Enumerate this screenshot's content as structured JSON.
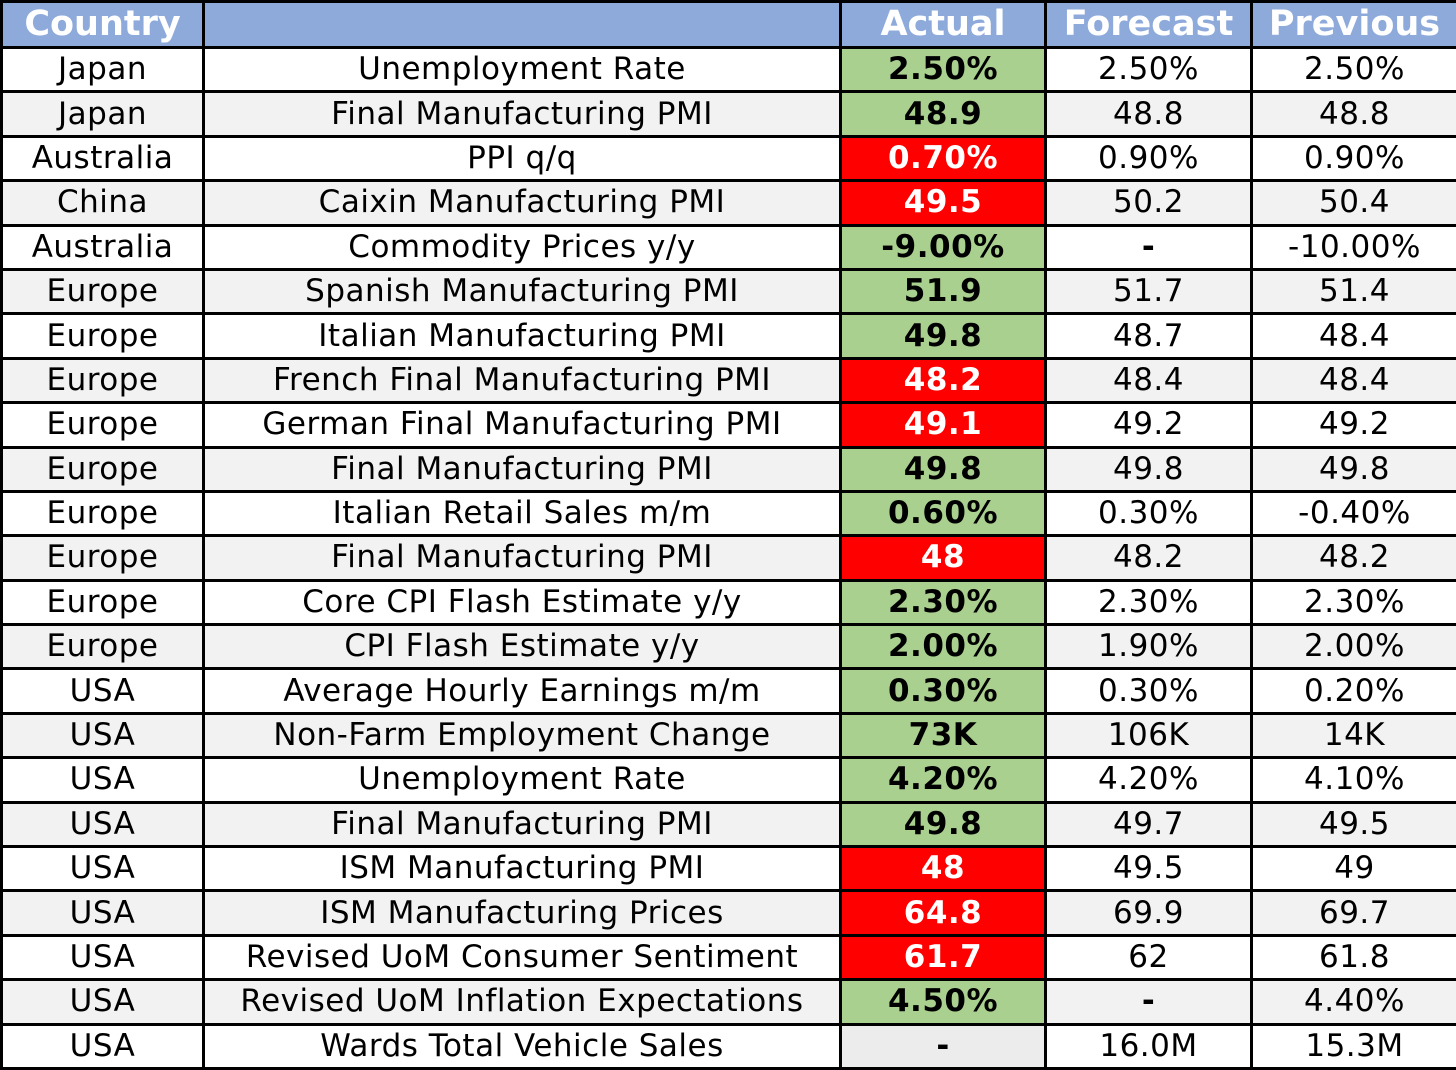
{
  "table": {
    "headers": {
      "country": "Country",
      "event": "",
      "actual": "Actual",
      "forecast": "Forecast",
      "previous": "Previous"
    },
    "colors": {
      "header_bg": "#8eaadb",
      "good": "#a9d08e",
      "bad": "#ff0000",
      "band": "#f2f2f2"
    },
    "rows": [
      {
        "country": "Japan",
        "event": "Unemployment Rate",
        "actual": "2.50%",
        "forecast": "2.50%",
        "previous": "2.50%",
        "status": "good"
      },
      {
        "country": "Japan",
        "event": "Final Manufacturing PMI",
        "actual": "48.9",
        "forecast": "48.8",
        "previous": "48.8",
        "status": "good"
      },
      {
        "country": "Australia",
        "event": "PPI q/q",
        "actual": "0.70%",
        "forecast": "0.90%",
        "previous": "0.90%",
        "status": "bad"
      },
      {
        "country": "China",
        "event": "Caixin Manufacturing PMI",
        "actual": "49.5",
        "forecast": "50.2",
        "previous": "50.4",
        "status": "bad"
      },
      {
        "country": "Australia",
        "event": "Commodity Prices y/y",
        "actual": "-9.00%",
        "forecast": "-",
        "previous": "-10.00%",
        "status": "good"
      },
      {
        "country": "Europe",
        "event": "Spanish Manufacturing PMI",
        "actual": "51.9",
        "forecast": "51.7",
        "previous": "51.4",
        "status": "good"
      },
      {
        "country": "Europe",
        "event": "Italian Manufacturing PMI",
        "actual": "49.8",
        "forecast": "48.7",
        "previous": "48.4",
        "status": "good"
      },
      {
        "country": "Europe",
        "event": "French Final Manufacturing PMI",
        "actual": "48.2",
        "forecast": "48.4",
        "previous": "48.4",
        "status": "bad"
      },
      {
        "country": "Europe",
        "event": "German Final Manufacturing PMI",
        "actual": "49.1",
        "forecast": "49.2",
        "previous": "49.2",
        "status": "bad"
      },
      {
        "country": "Europe",
        "event": "Final Manufacturing PMI",
        "actual": "49.8",
        "forecast": "49.8",
        "previous": "49.8",
        "status": "good"
      },
      {
        "country": "Europe",
        "event": "Italian Retail Sales m/m",
        "actual": "0.60%",
        "forecast": "0.30%",
        "previous": "-0.40%",
        "status": "good"
      },
      {
        "country": "Europe",
        "event": "Final Manufacturing PMI",
        "actual": "48",
        "forecast": "48.2",
        "previous": "48.2",
        "status": "bad"
      },
      {
        "country": "Europe",
        "event": "Core CPI Flash Estimate y/y",
        "actual": "2.30%",
        "forecast": "2.30%",
        "previous": "2.30%",
        "status": "good"
      },
      {
        "country": "Europe",
        "event": "CPI Flash Estimate y/y",
        "actual": "2.00%",
        "forecast": "1.90%",
        "previous": "2.00%",
        "status": "good"
      },
      {
        "country": "USA",
        "event": "Average Hourly Earnings m/m",
        "actual": "0.30%",
        "forecast": "0.30%",
        "previous": "0.20%",
        "status": "good"
      },
      {
        "country": "USA",
        "event": "Non-Farm Employment Change",
        "actual": "73K",
        "forecast": "106K",
        "previous": "14K",
        "status": "good"
      },
      {
        "country": "USA",
        "event": "Unemployment Rate",
        "actual": "4.20%",
        "forecast": "4.20%",
        "previous": "4.10%",
        "status": "good"
      },
      {
        "country": "USA",
        "event": "Final Manufacturing PMI",
        "actual": "49.8",
        "forecast": "49.7",
        "previous": "49.5",
        "status": "good"
      },
      {
        "country": "USA",
        "event": "ISM Manufacturing PMI",
        "actual": "48",
        "forecast": "49.5",
        "previous": "49",
        "status": "bad"
      },
      {
        "country": "USA",
        "event": "ISM Manufacturing Prices",
        "actual": "64.8",
        "forecast": "69.9",
        "previous": "69.7",
        "status": "bad"
      },
      {
        "country": "USA",
        "event": "Revised UoM Consumer Sentiment",
        "actual": "61.7",
        "forecast": "62",
        "previous": "61.8",
        "status": "bad"
      },
      {
        "country": "USA",
        "event": "Revised UoM Inflation Expectations",
        "actual": "4.50%",
        "forecast": "-",
        "previous": "4.40%",
        "status": "good"
      },
      {
        "country": "USA",
        "event": "Wards Total Vehicle Sales",
        "actual": "-",
        "forecast": "16.0M",
        "previous": "15.3M",
        "status": "none"
      }
    ]
  }
}
